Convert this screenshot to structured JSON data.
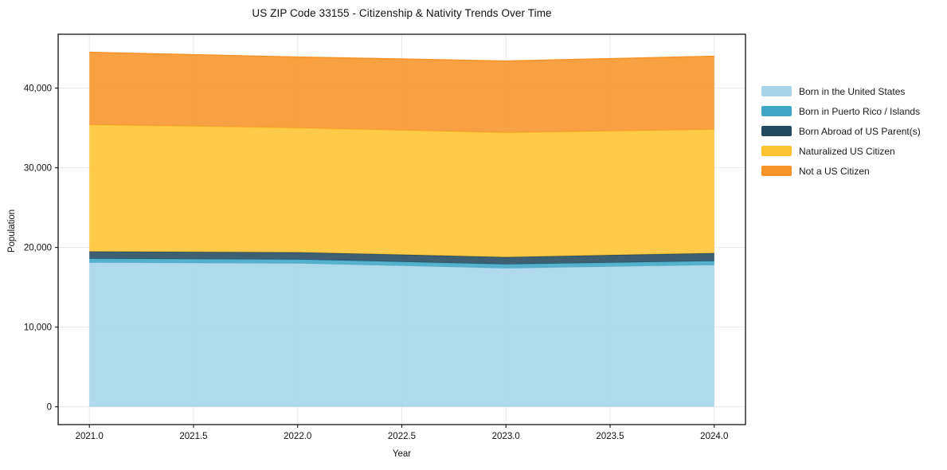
{
  "title": "US ZIP Code 33155 - Citizenship & Nativity Trends Over Time",
  "chart_data": {
    "type": "area",
    "stacked": true,
    "title": "US ZIP Code 33155 - Citizenship & Nativity Trends Over Time",
    "xlabel": "Year",
    "ylabel": "Population",
    "x": [
      2021,
      2022,
      2023,
      2024
    ],
    "series": [
      {
        "name": "Born in the United States",
        "color": "#A6D4E9",
        "values": [
          18100,
          18000,
          17400,
          17800
        ]
      },
      {
        "name": "Born in Puerto Rico / Islands",
        "color": "#3FA6C6",
        "values": [
          500,
          500,
          500,
          500
        ]
      },
      {
        "name": "Born Abroad of US Parent(s)",
        "color": "#234A5E",
        "values": [
          900,
          900,
          900,
          1000
        ]
      },
      {
        "name": "Naturalized US Citizen",
        "color": "#FDC330",
        "values": [
          15900,
          15600,
          15600,
          15500
        ]
      },
      {
        "name": "Not a US Citizen",
        "color": "#F79429",
        "values": [
          9100,
          8900,
          9000,
          9200
        ]
      }
    ],
    "xlim": [
      2020.85,
      2024.15
    ],
    "ylim": [
      -2230,
      46760
    ],
    "xticks": {
      "values": [
        2021.0,
        2021.5,
        2022.0,
        2022.5,
        2023.0,
        2023.5,
        2024.0
      ],
      "labels": [
        "2021.0",
        "2021.5",
        "2022.0",
        "2022.5",
        "2023.0",
        "2023.5",
        "2024.0"
      ]
    },
    "yticks": {
      "values": [
        0,
        10000,
        20000,
        30000,
        40000
      ],
      "labels": [
        "0",
        "10,000",
        "20,000",
        "30,000",
        "40,000"
      ]
    },
    "grid": true,
    "grid_color": "#e9e9e9",
    "spine_color": "#000000",
    "tick_text_color": "#111111",
    "fill_opacity": 0.88,
    "legend_position": "outside-right"
  }
}
